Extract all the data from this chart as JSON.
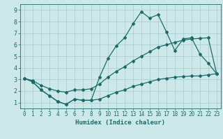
{
  "xlabel": "Humidex (Indice chaleur)",
  "bg_color": "#cce8e8",
  "line_color": "#1a6b6b",
  "grid_color": "#aacfcf",
  "xlim": [
    -0.5,
    23.5
  ],
  "ylim": [
    0.5,
    9.5
  ],
  "xticks": [
    0,
    1,
    2,
    3,
    4,
    5,
    6,
    7,
    8,
    9,
    10,
    11,
    12,
    13,
    14,
    15,
    16,
    17,
    18,
    19,
    20,
    21,
    22,
    23
  ],
  "yticks": [
    1,
    2,
    3,
    4,
    5,
    6,
    7,
    8,
    9
  ],
  "line1_x": [
    0,
    1,
    2,
    3,
    4,
    5,
    6,
    7,
    8,
    9,
    10,
    11,
    12,
    13,
    14,
    15,
    16,
    17,
    18,
    19,
    20,
    21,
    22,
    23
  ],
  "line1_y": [
    3.1,
    2.8,
    2.1,
    1.6,
    1.1,
    0.85,
    1.3,
    1.2,
    1.2,
    3.2,
    4.8,
    5.9,
    6.6,
    7.8,
    8.85,
    8.3,
    8.6,
    7.1,
    5.5,
    6.5,
    6.6,
    5.2,
    4.4,
    3.5
  ],
  "line2_x": [
    0,
    1,
    2,
    3,
    4,
    5,
    6,
    7,
    8,
    9,
    10,
    11,
    12,
    13,
    14,
    15,
    16,
    17,
    18,
    19,
    20,
    21,
    22,
    23
  ],
  "line2_y": [
    3.1,
    2.9,
    2.5,
    2.2,
    2.0,
    1.9,
    2.1,
    2.1,
    2.2,
    2.6,
    3.2,
    3.7,
    4.1,
    4.6,
    5.0,
    5.4,
    5.8,
    6.0,
    6.2,
    6.4,
    6.5,
    6.55,
    6.6,
    3.5
  ],
  "line3_x": [
    0,
    1,
    2,
    3,
    4,
    5,
    6,
    7,
    8,
    9,
    10,
    11,
    12,
    13,
    14,
    15,
    16,
    17,
    18,
    19,
    20,
    21,
    22,
    23
  ],
  "line3_y": [
    3.1,
    2.8,
    2.1,
    1.6,
    1.1,
    0.85,
    1.3,
    1.2,
    1.2,
    1.3,
    1.6,
    1.9,
    2.1,
    2.4,
    2.6,
    2.8,
    3.0,
    3.1,
    3.2,
    3.25,
    3.3,
    3.3,
    3.4,
    3.5
  ],
  "tick_fontsize": 5.5,
  "xlabel_fontsize": 6.5,
  "marker_size": 2.0
}
